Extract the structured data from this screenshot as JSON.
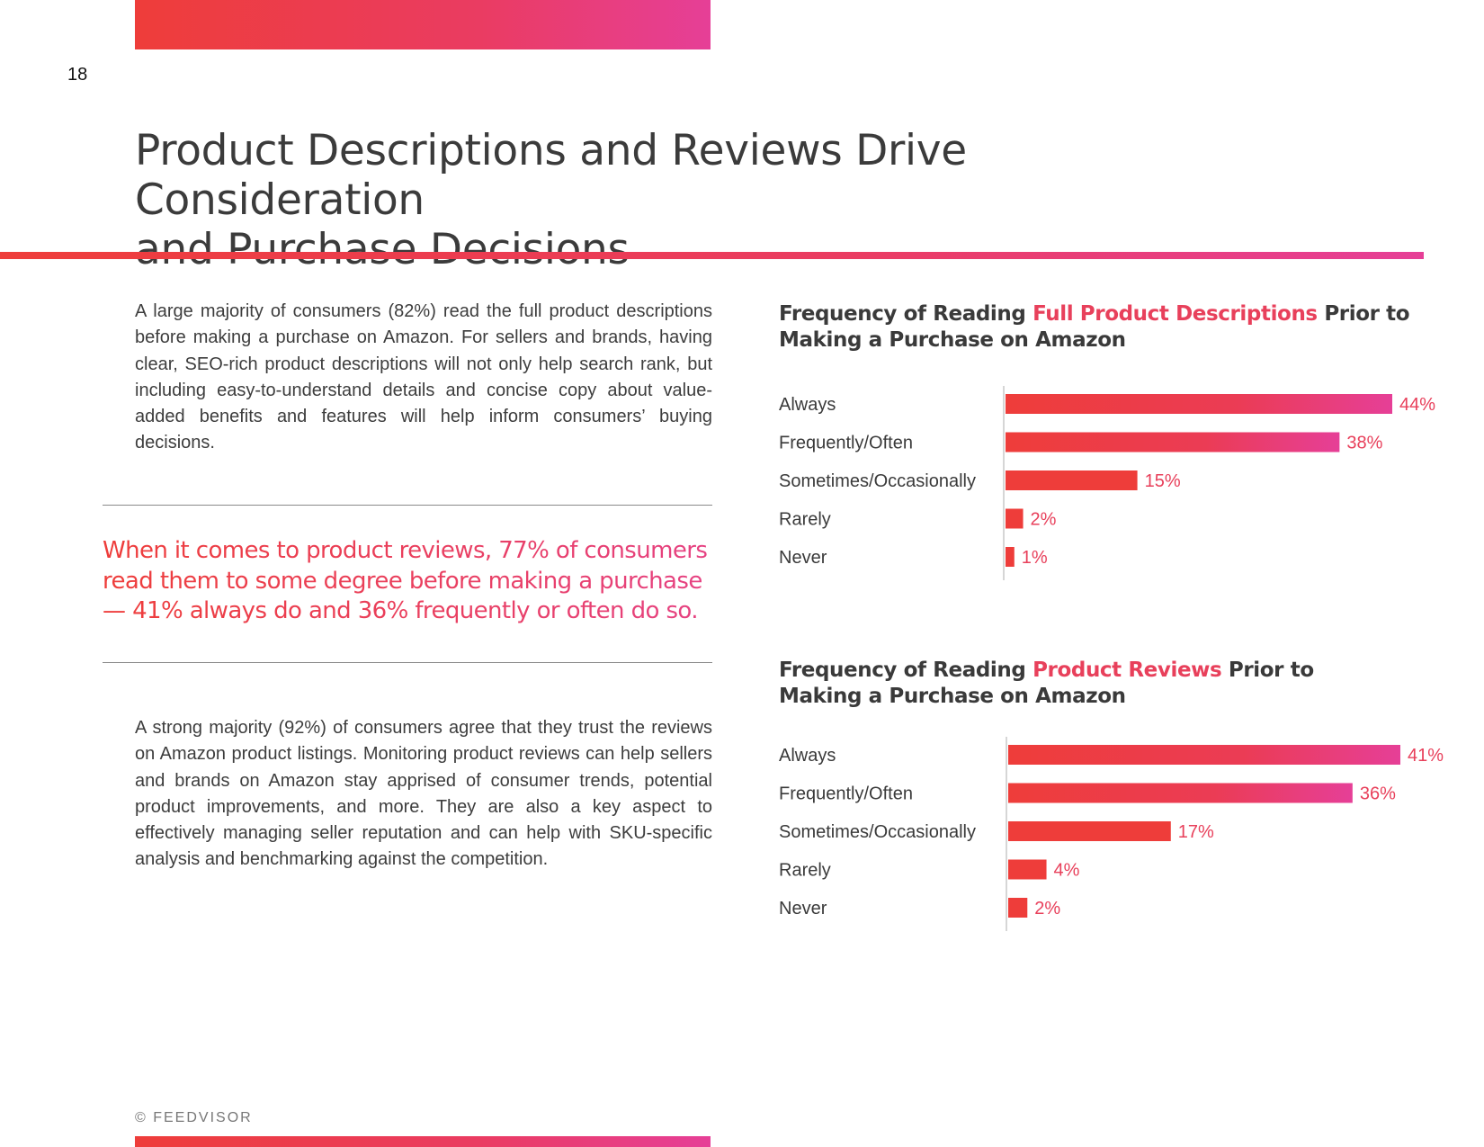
{
  "page": {
    "number": "18"
  },
  "title": {
    "line1": "Product Descriptions and Reviews Drive Consideration",
    "line2": "and Purchase Decisions"
  },
  "paragraph1": "A large majority of consumers (82%) read the full product descriptions before making a purchase on Amazon. For sellers and brands, having clear, SEO-rich product descriptions will not only help search rank, but including easy-to-understand details and concise copy about value-added benefits and features will help inform consumers’ buying decisions.",
  "callout": "When it comes to product reviews, 77% of consumers read them to some degree before making a purchase — 41% always do and 36% frequently or often do so.",
  "paragraph2": "A strong majority (92%) of consumers agree that they trust the reviews on Amazon product listings. Monitoring product reviews can help sellers and brands on Amazon stay apprised of consumer trends, potential product improvements, and more. They are also a key aspect to effectively managing seller reputation and can help with SKU-specific analysis and benchmarking against the competition.",
  "footer": {
    "copyright": "© FEEDVISOR"
  },
  "colors": {
    "accent_start": "#ee3d3a",
    "accent_end": "#e63f97",
    "label_red": "#e8405b"
  },
  "chart_data": [
    {
      "type": "bar",
      "orientation": "horizontal",
      "title_pre": "Frequency of Reading ",
      "title_highlight": "Full Product Descriptions",
      "title_post": " Prior to",
      "title_line2": "Making a Purchase on Amazon",
      "categories": [
        "Always",
        "Frequently/Often",
        "Sometimes/Occasionally",
        "Rarely",
        "Never"
      ],
      "values": [
        44,
        38,
        15,
        2,
        1
      ],
      "value_labels": [
        "44%",
        "38%",
        "15%",
        "2%",
        "1%"
      ],
      "unit": "%",
      "xlim": [
        0,
        44
      ]
    },
    {
      "type": "bar",
      "orientation": "horizontal",
      "title_pre": "Frequency of Reading ",
      "title_highlight": "Product Reviews",
      "title_post": " Prior to",
      "title_line2": "Making a Purchase on Amazon",
      "categories": [
        "Always",
        "Frequently/Often",
        "Sometimes/Occasionally",
        "Rarely",
        "Never"
      ],
      "values": [
        41,
        36,
        17,
        4,
        2
      ],
      "value_labels": [
        "41%",
        "36%",
        "17%",
        "4%",
        "2%"
      ],
      "unit": "%",
      "xlim": [
        0,
        41
      ]
    }
  ]
}
